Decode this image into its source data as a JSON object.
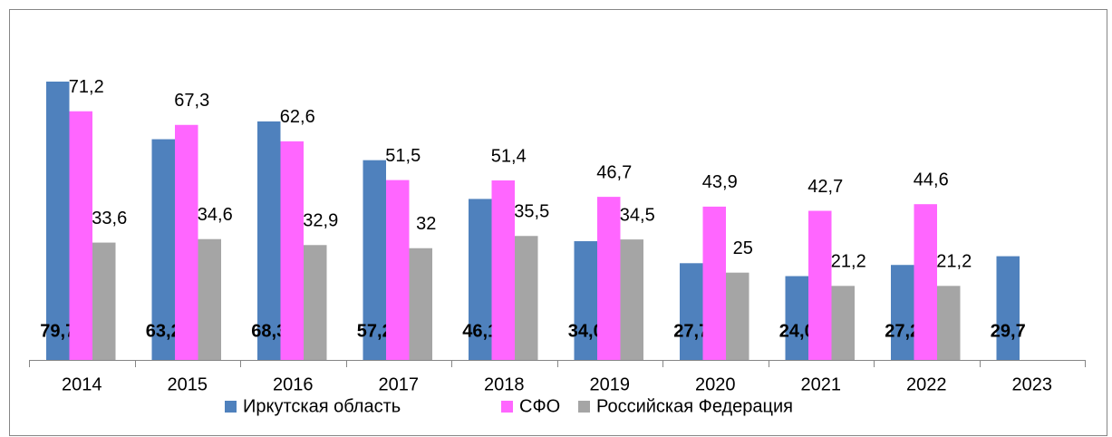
{
  "chart_data": {
    "type": "bar",
    "categories": [
      "2014",
      "2015",
      "2016",
      "2017",
      "2018",
      "2019",
      "2020",
      "2021",
      "2022",
      "2023"
    ],
    "series": [
      {
        "name": "Иркутская область",
        "color": "#4f81bd",
        "values": [
          79.7,
          63.2,
          68.3,
          57.2,
          46.1,
          34.0,
          27.7,
          24.0,
          27.2,
          29.7
        ],
        "value_labels": [
          "79,7",
          "63,2",
          "68,3",
          "57,2",
          "46,1",
          "34,0",
          "27,7",
          "24,0",
          "27,2",
          "29,7"
        ]
      },
      {
        "name": "СФО",
        "color": "#ff66ff",
        "values": [
          71.2,
          67.3,
          62.6,
          51.5,
          51.4,
          46.7,
          43.9,
          42.7,
          44.6,
          null
        ],
        "value_labels": [
          "71,2",
          "67,3",
          "62,6",
          "51,5",
          "51,4",
          "46,7",
          "43,9",
          "42,7",
          "44,6",
          null
        ]
      },
      {
        "name": "Российская Федерация",
        "color": "#a5a5a5",
        "values": [
          33.6,
          34.6,
          32.9,
          32,
          35.5,
          34.5,
          25,
          21.2,
          21.2,
          null
        ],
        "value_labels": [
          "33,6",
          "34,6",
          "32,9",
          "32",
          "35,5",
          "34,5",
          "25",
          "21,2",
          "21,2",
          null
        ]
      }
    ],
    "legend": "bottom"
  }
}
